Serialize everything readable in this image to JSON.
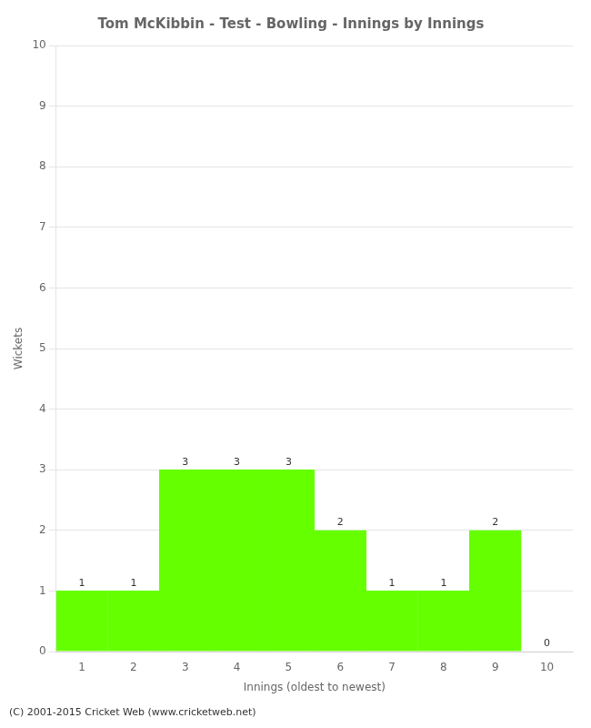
{
  "chart_data": {
    "type": "bar",
    "title": "Tom McKibbin - Test - Bowling - Innings by Innings",
    "xlabel": "Innings (oldest to newest)",
    "ylabel": "Wickets",
    "categories": [
      1,
      2,
      3,
      4,
      5,
      6,
      7,
      8,
      9,
      10
    ],
    "values": [
      1,
      1,
      3,
      3,
      3,
      2,
      1,
      1,
      2,
      0
    ],
    "color": "#66ff00",
    "ylim": [
      0,
      10
    ],
    "yticks": [
      0,
      1,
      2,
      3,
      4,
      5,
      6,
      7,
      8,
      9,
      10
    ],
    "grid": true,
    "data_labels": true,
    "annotations": [
      "(C) 2001-2015 Cricket Web (www.cricketweb.net)"
    ]
  }
}
